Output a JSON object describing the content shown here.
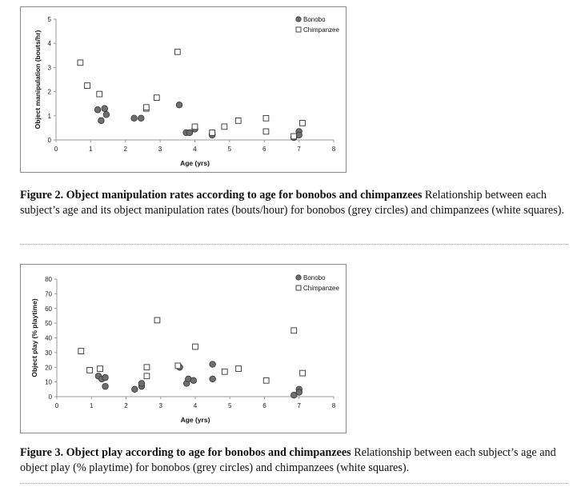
{
  "figure2": {
    "caption_title": "Figure 2.  Object manipulation rates according to age for bonobos and chimpanzees",
    "caption_text": " Relationship between each subject’s age and its object manipulation rates (bouts/hour) for bonobos (grey circles) and chimpanzees (white squares)."
  },
  "figure3": {
    "caption_title": "Figure 3.  Object play according to age for bonobos and chimpanzees",
    "caption_text": " Relationship between each subject’s age and object play (% playtime) for bonobos (grey circles) and chimpanzees (white squares)."
  },
  "colors": {
    "bonobo": "#6e6e6e",
    "chimpanzee": "#ffffff",
    "axis": "#999999"
  },
  "chart_data": [
    {
      "type": "scatter",
      "title": "",
      "xlabel": "Age (yrs)",
      "ylabel": "Object manipulation (bouts/hr)",
      "xlim": [
        0,
        8
      ],
      "ylim": [
        0,
        5
      ],
      "xticks": [
        0,
        1,
        2,
        3,
        4,
        5,
        6,
        7,
        8
      ],
      "yticks": [
        0,
        1,
        2,
        3,
        4,
        5
      ],
      "grid": false,
      "legend": "top-right",
      "series": [
        {
          "name": "Bonobo",
          "marker": "circle",
          "x": [
            1.2,
            1.4,
            1.3,
            1.45,
            2.25,
            2.45,
            3.55,
            3.75,
            3.85,
            4.0,
            4.5,
            4.5,
            6.85,
            7.0,
            7.0
          ],
          "y": [
            1.25,
            1.3,
            0.8,
            1.05,
            0.9,
            0.9,
            1.45,
            0.3,
            0.3,
            0.45,
            0.25,
            0.2,
            0.1,
            0.35,
            0.2
          ]
        },
        {
          "name": "Chimpanzee",
          "marker": "square",
          "x": [
            0.7,
            0.9,
            1.25,
            2.6,
            2.6,
            2.9,
            3.5,
            4.0,
            4.5,
            4.85,
            5.25,
            6.05,
            6.05,
            6.85,
            7.1
          ],
          "y": [
            3.2,
            2.25,
            1.9,
            1.3,
            1.35,
            1.75,
            3.65,
            0.55,
            0.3,
            0.55,
            0.8,
            0.9,
            0.35,
            0.15,
            0.7
          ]
        }
      ]
    },
    {
      "type": "scatter",
      "title": "",
      "xlabel": "Age (yrs)",
      "ylabel": "Object play (% playtime)",
      "xlim": [
        0,
        8
      ],
      "ylim": [
        0,
        80
      ],
      "xticks": [
        0,
        1,
        2,
        3,
        4,
        5,
        6,
        7,
        8
      ],
      "yticks": [
        0,
        10,
        20,
        30,
        40,
        50,
        60,
        70,
        80
      ],
      "grid": false,
      "legend": "top-right",
      "series": [
        {
          "name": "Bonobo",
          "marker": "circle",
          "x": [
            1.2,
            1.3,
            1.4,
            1.4,
            2.25,
            2.45,
            2.45,
            3.55,
            3.75,
            3.8,
            3.95,
            4.5,
            4.5,
            6.85,
            7.0,
            7.0
          ],
          "y": [
            14,
            12,
            13,
            7,
            5,
            7,
            9,
            20,
            9,
            12,
            11,
            22,
            12,
            1,
            5,
            3
          ]
        },
        {
          "name": "Chimpanzee",
          "marker": "square",
          "x": [
            0.7,
            0.95,
            1.25,
            2.6,
            2.6,
            2.9,
            3.5,
            4.0,
            4.85,
            5.25,
            6.05,
            6.85,
            7.1
          ],
          "y": [
            31,
            18,
            19,
            20,
            14,
            52,
            21,
            34,
            17,
            19,
            11,
            45,
            16
          ]
        }
      ]
    }
  ]
}
